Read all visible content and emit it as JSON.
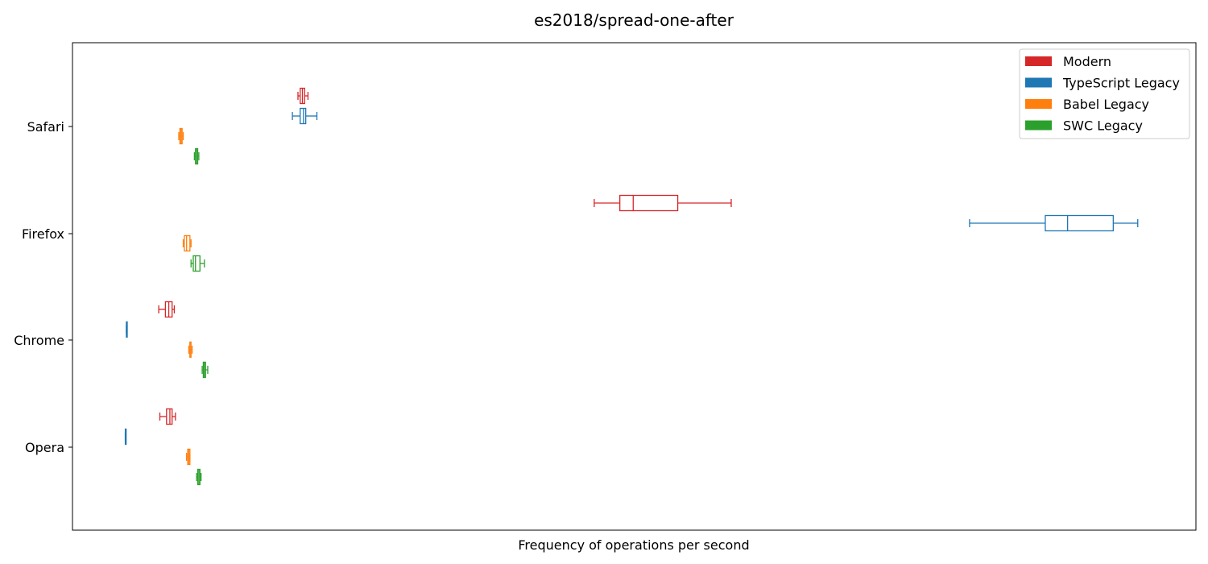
{
  "chart_data": {
    "type": "boxplot",
    "orientation": "horizontal",
    "title": "es2018/spread-one-after",
    "xlabel": "Frequency of operations per second",
    "ylabel": "",
    "x_ticks_visible": false,
    "xlim": [
      0,
      1000
    ],
    "grid": false,
    "legend_position": "top-right",
    "categories": [
      "Safari",
      "Firefox",
      "Chrome",
      "Opera"
    ],
    "series": [
      {
        "name": "Modern",
        "color": "#d62728",
        "boxes": [
          {
            "min": 201,
            "q1": 203,
            "median": 205,
            "q3": 207,
            "max": 210
          },
          {
            "min": 467,
            "q1": 490,
            "median": 502,
            "q3": 542,
            "max": 590
          },
          {
            "min": 76,
            "q1": 82,
            "median": 85,
            "q3": 88,
            "max": 90
          },
          {
            "min": 77,
            "q1": 83,
            "median": 86,
            "q3": 88,
            "max": 91
          }
        ]
      },
      {
        "name": "TypeScript Legacy",
        "color": "#1f77b4",
        "boxes": [
          {
            "min": 196,
            "q1": 203,
            "median": 206,
            "q3": 208,
            "max": 218
          },
          {
            "min": 804,
            "q1": 872,
            "median": 892,
            "q3": 933,
            "max": 955
          },
          {
            "min": 47,
            "q1": 47,
            "median": 47,
            "q3": 47,
            "max": 47
          },
          {
            "min": 46,
            "q1": 46,
            "median": 46,
            "q3": 46,
            "max": 46
          }
        ]
      },
      {
        "name": "Babel Legacy",
        "color": "#ff7f0e",
        "boxes": [
          {
            "min": 94,
            "q1": 95,
            "median": 96,
            "q3": 97,
            "max": 98
          },
          {
            "min": 98,
            "q1": 99,
            "median": 101,
            "q3": 104,
            "max": 105
          },
          {
            "min": 103,
            "q1": 104,
            "median": 104,
            "q3": 105,
            "max": 106
          },
          {
            "min": 101,
            "q1": 102,
            "median": 103,
            "q3": 104,
            "max": 104
          }
        ]
      },
      {
        "name": "SWC Legacy",
        "color": "#2ca02c",
        "boxes": [
          {
            "min": 108,
            "q1": 109,
            "median": 110,
            "q3": 111,
            "max": 112
          },
          {
            "min": 105,
            "q1": 107,
            "median": 109,
            "q3": 113,
            "max": 117
          },
          {
            "min": 115,
            "q1": 116,
            "median": 117,
            "q3": 118,
            "max": 120
          },
          {
            "min": 110,
            "q1": 111,
            "median": 112,
            "q3": 113,
            "max": 114
          }
        ]
      }
    ]
  }
}
